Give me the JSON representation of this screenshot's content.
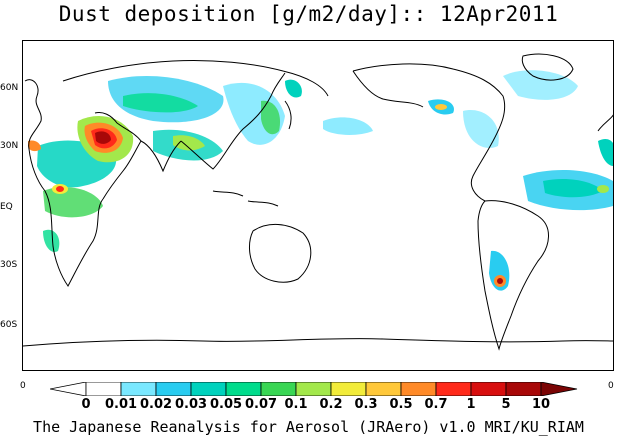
{
  "title": "Dust deposition [g/m2/day]:: 12Apr2011",
  "lat_labels": [
    "60N",
    "30N",
    "EQ",
    "30S",
    "60S"
  ],
  "colorbar": {
    "left_edge_label": "0",
    "right_edge_label": "0",
    "ticks": [
      "0",
      "0.01",
      "0.02",
      "0.03",
      "0.05",
      "0.07",
      "0.1",
      "0.2",
      "0.3",
      "0.5",
      "0.7",
      "1",
      "5",
      "10"
    ],
    "colors": [
      "#ffffff",
      "#ffffff",
      "#7ae8ff",
      "#29ccf0",
      "#00d2bd",
      "#00dc8c",
      "#39d654",
      "#a3e84b",
      "#f2ec3a",
      "#ffc83a",
      "#ff8a28",
      "#ff2a1a",
      "#d80f0f",
      "#a80808",
      "#7a0404"
    ]
  },
  "credit": "The Japanese Reanalysis for Aerosol (JRAero) v1.0 MRI/KU_RIAM",
  "legend_colors": {
    "land_outline": "#000000",
    "background": "#ffffff"
  }
}
